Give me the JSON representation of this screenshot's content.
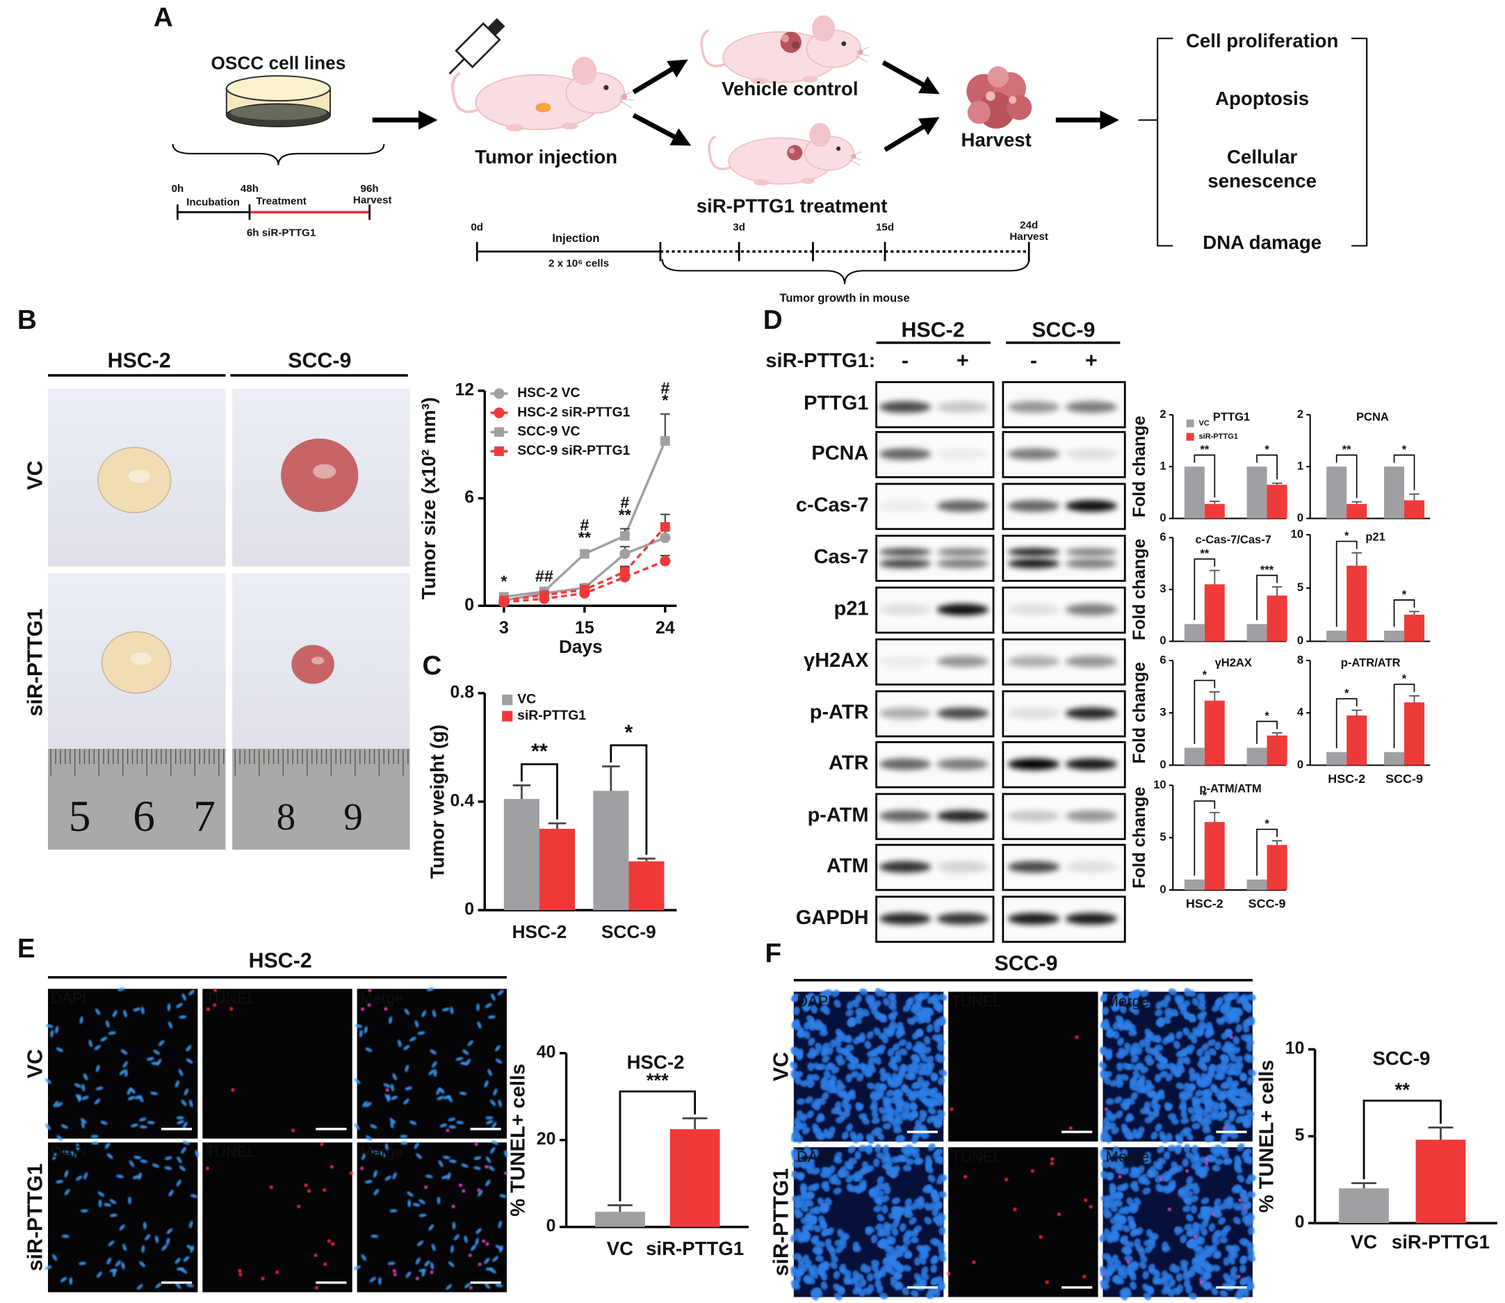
{
  "panel_labels": [
    "A",
    "B",
    "C",
    "D",
    "E",
    "F"
  ],
  "schematic": {
    "cell_lines": "OSCC cell lines",
    "in_vitro_times": [
      "0h",
      "48h",
      "96h"
    ],
    "in_vitro_harvest": "Harvest",
    "in_vitro_phases": [
      "Incubation",
      "Treatment"
    ],
    "in_vitro_treatment": "6h siR-PTTG1",
    "tumor_injection": "Tumor injection",
    "vehicle_control": "Vehicle control",
    "treatment": "siR-PTTG1 treatment",
    "harvest": "Harvest",
    "in_vivo_times": [
      "0d",
      "3d",
      "15d",
      "24d"
    ],
    "in_vivo_harvest": "Harvest",
    "injection": "Injection",
    "cells": "2 x 10⁶ cells",
    "growth": "Tumor growth in mouse",
    "outcomes": [
      "Cell proliferation",
      "Apoptosis",
      "Cellular",
      "senescence",
      "DNA damage"
    ]
  },
  "photos": {
    "columns": [
      "HSC-2",
      "SCC-9"
    ],
    "rows": [
      "VC",
      "siR-PTTG1"
    ],
    "ruler_labels": [
      "5",
      "6",
      "7",
      "8",
      "9"
    ]
  },
  "blot": {
    "groups": [
      "HSC-2",
      "SCC-9"
    ],
    "treatment_label": "siR-PTTG1:",
    "lanes": [
      "-",
      "+",
      "-",
      "+"
    ],
    "proteins": [
      "PTTG1",
      "PCNA",
      "c-Cas-7",
      "Cas-7",
      "p21",
      "γH2AX",
      "p-ATR",
      "ATR",
      "p-ATM",
      "ATM",
      "GAPDH"
    ]
  },
  "tunel": [
    {
      "title": "HSC-2",
      "channels": [
        "DAPI",
        "TUNEL",
        "Merge"
      ],
      "rows": [
        "VC",
        "siR-PTTG1"
      ]
    },
    {
      "title": "SCC-9",
      "channels": [
        "DAPI",
        "TUNEL",
        "Merge"
      ],
      "rows": [
        "VC",
        "siR-PTTG1"
      ]
    }
  ],
  "chart_data": [
    {
      "type": "line",
      "xlabel": "Days",
      "ylabel": "Tumor size (x10² mm³)",
      "categories": [
        "3",
        null,
        "15",
        null,
        "24"
      ],
      "ylim": [
        0,
        12
      ],
      "yticks": [
        0,
        6,
        12
      ],
      "series": [
        {
          "name": "HSC-2 VC",
          "color": "#a0a0a4",
          "marker": "circle",
          "linestyle": "solid",
          "values": [
            0.3,
            0.7,
            1.0,
            2.9,
            3.8
          ],
          "errors": [
            0.1,
            0.1,
            0.2,
            0.4,
            0.6
          ]
        },
        {
          "name": "HSC-2 siR-PTTG1",
          "color": "#f03a3a",
          "marker": "circle",
          "linestyle": "dashed",
          "values": [
            0.2,
            0.4,
            0.7,
            1.6,
            2.5
          ],
          "errors": [
            0.05,
            0.1,
            0.1,
            0.3,
            0.3
          ]
        },
        {
          "name": "SCC-9 VC",
          "color": "#a0a0a4",
          "marker": "square",
          "linestyle": "solid",
          "values": [
            0.5,
            0.8,
            2.9,
            3.9,
            9.2
          ],
          "errors": [
            0.1,
            0.1,
            0.15,
            0.4,
            1.5
          ]
        },
        {
          "name": "SCC-9 siR-PTTG1",
          "color": "#f03a3a",
          "marker": "square",
          "linestyle": "dashed",
          "values": [
            0.3,
            0.6,
            0.9,
            1.9,
            4.4
          ],
          "errors": [
            0.05,
            0.1,
            0.1,
            0.3,
            0.7
          ]
        }
      ],
      "annotations": [
        [
          "*"
        ],
        [
          "##"
        ],
        [
          "#",
          "**"
        ],
        [
          "#",
          "**"
        ],
        [
          "#",
          "*"
        ]
      ],
      "legend": true
    },
    {
      "type": "bar",
      "ylabel": "Tumor weight (g)",
      "categories": [
        "HSC-2",
        "SCC-9"
      ],
      "ylim": [
        0,
        0.8
      ],
      "yticks": [
        0,
        0.4,
        0.8
      ],
      "series": [
        {
          "name": "VC",
          "color": "#a0a0a4",
          "values": [
            0.41,
            0.44
          ],
          "errors": [
            0.05,
            0.09
          ]
        },
        {
          "name": "siR-PTTG1",
          "color": "#f03a3a",
          "values": [
            0.3,
            0.18
          ],
          "errors": [
            0.02,
            0.01
          ]
        }
      ],
      "significance": [
        "**",
        "*"
      ],
      "legend": true
    },
    {
      "type": "bar",
      "title": "PTTG1",
      "ylabel": "Fold change",
      "categories": [
        null,
        null
      ],
      "ylim": [
        0,
        2
      ],
      "yticks": [
        0,
        1,
        2
      ],
      "series": [
        {
          "name": "VC",
          "color": "#a0a0a4",
          "values": [
            1,
            1
          ]
        },
        {
          "name": "siR-PTTG1",
          "color": "#f03a3a",
          "values": [
            0.28,
            0.65
          ],
          "errors": [
            0.05,
            0.03
          ]
        }
      ],
      "significance": [
        "**",
        "*"
      ],
      "legend": true
    },
    {
      "type": "bar",
      "title": "PCNA",
      "categories": [
        null,
        null
      ],
      "ylim": [
        0,
        2
      ],
      "yticks": [
        0,
        1,
        2
      ],
      "series": [
        {
          "color": "#a0a0a4",
          "values": [
            1,
            1
          ]
        },
        {
          "color": "#f03a3a",
          "values": [
            0.28,
            0.35
          ],
          "errors": [
            0.04,
            0.12
          ]
        }
      ],
      "significance": [
        "**",
        "*"
      ]
    },
    {
      "type": "bar",
      "title": "c-Cas-7/Cas-7",
      "ylabel": "Fold change",
      "categories": [
        null,
        null
      ],
      "ylim": [
        0,
        6
      ],
      "yticks": [
        0,
        3,
        6
      ],
      "series": [
        {
          "color": "#a0a0a4",
          "values": [
            1,
            1
          ]
        },
        {
          "color": "#f03a3a",
          "values": [
            3.3,
            2.65
          ],
          "errors": [
            0.8,
            0.5
          ]
        }
      ],
      "significance": [
        "**",
        "***"
      ]
    },
    {
      "type": "bar",
      "title": "p21",
      "categories": [
        null,
        null
      ],
      "ylim": [
        0,
        10
      ],
      "yticks": [
        0,
        5,
        10
      ],
      "series": [
        {
          "color": "#a0a0a4",
          "values": [
            1,
            1
          ]
        },
        {
          "color": "#f03a3a",
          "values": [
            7.1,
            2.5
          ],
          "errors": [
            1.2,
            0.3
          ]
        }
      ],
      "significance": [
        "*",
        "*"
      ]
    },
    {
      "type": "bar",
      "title": "γH2AX",
      "ylabel": "Fold change",
      "categories": [
        null,
        null
      ],
      "ylim": [
        0,
        6
      ],
      "yticks": [
        0,
        3,
        6
      ],
      "series": [
        {
          "color": "#a0a0a4",
          "values": [
            1,
            1
          ]
        },
        {
          "color": "#f03a3a",
          "values": [
            3.7,
            1.7
          ],
          "errors": [
            0.5,
            0.15
          ]
        }
      ],
      "significance": [
        "*",
        "*"
      ]
    },
    {
      "type": "bar",
      "title": "p-ATR/ATR",
      "categories": [
        "HSC-2",
        "SCC-9"
      ],
      "ylim": [
        0,
        8
      ],
      "yticks": [
        0,
        4,
        8
      ],
      "series": [
        {
          "color": "#a0a0a4",
          "values": [
            1,
            1
          ]
        },
        {
          "color": "#f03a3a",
          "values": [
            3.8,
            4.8
          ],
          "errors": [
            0.4,
            0.5
          ]
        }
      ],
      "significance": [
        "*",
        "*"
      ]
    },
    {
      "type": "bar",
      "title": "p-ATM/ATM",
      "ylabel": "Fold change",
      "categories": [
        "HSC-2",
        "SCC-9"
      ],
      "ylim": [
        0,
        10
      ],
      "yticks": [
        0,
        5,
        10
      ],
      "series": [
        {
          "color": "#a0a0a4",
          "values": [
            1,
            1
          ]
        },
        {
          "color": "#f03a3a",
          "values": [
            6.5,
            4.3
          ],
          "errors": [
            0.9,
            0.4
          ]
        }
      ],
      "significance": [
        "*",
        "*"
      ]
    },
    {
      "type": "bar",
      "title": "HSC-2",
      "ylabel": "% TUNEL+ cells",
      "categories": [
        "VC",
        "siR-PTTG1"
      ],
      "ylim": [
        0,
        40
      ],
      "yticks": [
        0,
        20,
        40
      ],
      "values": [
        3.5,
        22.5
      ],
      "errors": [
        1.5,
        2.5
      ],
      "colors": [
        "#a0a0a4",
        "#f03a3a"
      ],
      "significance": "***"
    },
    {
      "type": "bar",
      "title": "SCC-9",
      "ylabel": "% TUNEL+ cells",
      "categories": [
        "VC",
        "siR-PTTG1"
      ],
      "ylim": [
        0,
        10
      ],
      "yticks": [
        0,
        5,
        10
      ],
      "values": [
        2.0,
        4.8
      ],
      "errors": [
        0.3,
        0.7
      ],
      "colors": [
        "#a0a0a4",
        "#f03a3a"
      ],
      "significance": "**"
    }
  ]
}
